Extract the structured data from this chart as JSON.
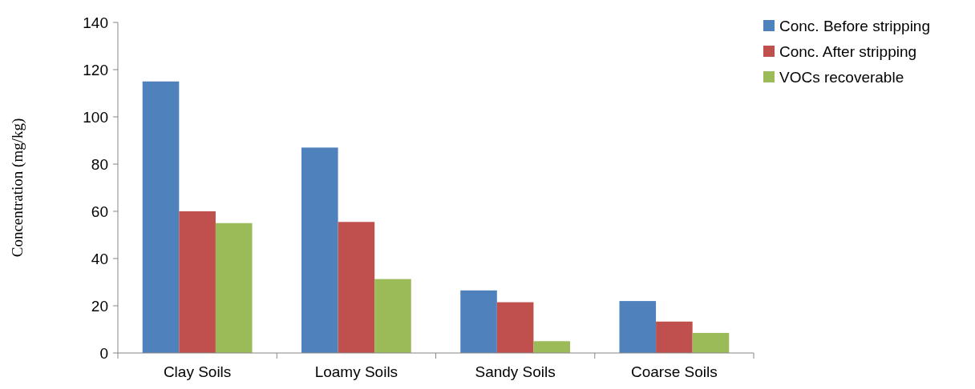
{
  "chart_data": {
    "type": "bar",
    "ylabel": "Concentration (mg/kg)",
    "categories": [
      "Clay Soils",
      "Loamy Soils",
      "Sandy Soils",
      "Coarse Soils"
    ],
    "series": [
      {
        "name": "Conc. Before stripping",
        "color": "#4f81bd",
        "values": [
          115,
          87,
          26.5,
          22
        ]
      },
      {
        "name": "Conc. After stripping",
        "color": "#c0504d",
        "values": [
          60,
          55.5,
          21.5,
          13.3
        ]
      },
      {
        "name": "VOCs recoverable",
        "color": "#9bbb59",
        "values": [
          55,
          31.3,
          5,
          8.5
        ]
      }
    ],
    "ylim": [
      0,
      140
    ],
    "yticks": [
      0,
      20,
      40,
      60,
      80,
      100,
      120,
      140
    ],
    "grid": false,
    "legend": "top right"
  }
}
